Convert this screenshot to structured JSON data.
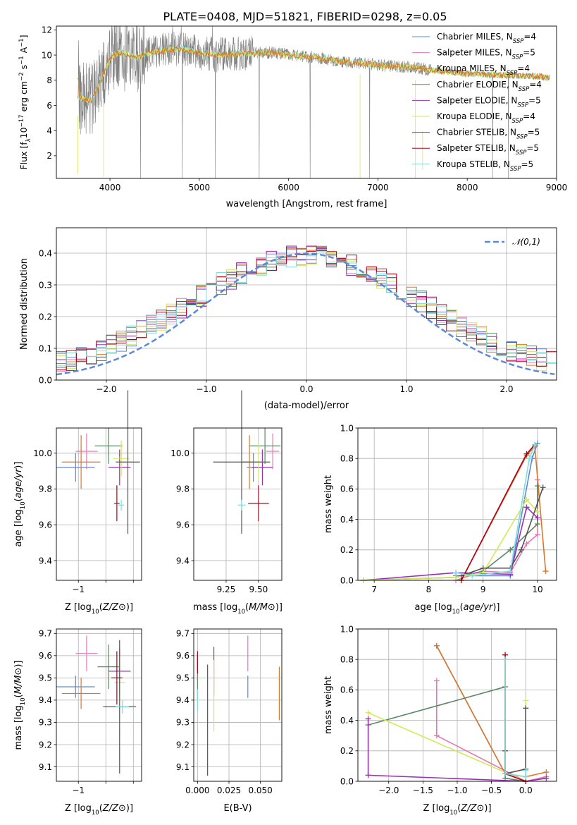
{
  "page": {
    "title": "PLATE=0408, MJD=51821, FIBERID=0298, z=0.05"
  },
  "series_styles": [
    {
      "key": "chabrier_miles",
      "color": "#5b8ad8"
    },
    {
      "key": "salpeter_miles",
      "color": "#e477b4"
    },
    {
      "key": "kroupa_miles",
      "color": "#d9772b"
    },
    {
      "key": "chabrier_elodie",
      "color": "#5d8766"
    },
    {
      "key": "salpeter_elodie",
      "color": "#9b2fb8"
    },
    {
      "key": "kroupa_elodie",
      "color": "#d4e85a"
    },
    {
      "key": "chabrier_stelib",
      "color": "#555555"
    },
    {
      "key": "salpeter_stelib",
      "color": "#b00018"
    },
    {
      "key": "kroupa_stelib",
      "color": "#7fdede"
    }
  ],
  "chart_data": [
    {
      "id": "spectrum",
      "type": "line",
      "xlabel": "wavelength [Angstrom, rest frame]",
      "ylabel_parts": [
        "Flux [f",
        "λ",
        "10",
        "−17",
        " erg cm",
        "−2",
        " s",
        "−1",
        " A",
        "−1",
        "]"
      ],
      "xlim": [
        3400,
        9000
      ],
      "ylim": [
        0.2,
        12.3
      ],
      "xticks": [
        4000,
        5000,
        6000,
        7000,
        8000,
        9000
      ],
      "yticks": [
        2,
        4,
        6,
        8,
        10,
        12
      ],
      "legend_position": "upper right",
      "legend": [
        {
          "base": "Chabrier MILES, N",
          "sub": "SSP",
          "tail": "=4"
        },
        {
          "base": "Salpeter MILES, N",
          "sub": "SSP",
          "tail": "=5"
        },
        {
          "base": "Kroupa MILES, N",
          "sub": "SSP",
          "tail": "=4"
        },
        {
          "base": "Chabrier ELODIE, N",
          "sub": "SSP",
          "tail": "=4"
        },
        {
          "base": "Salpeter ELODIE, N",
          "sub": "SSP",
          "tail": "=5"
        },
        {
          "base": "Kroupa ELODIE, N",
          "sub": "SSP",
          "tail": "=4"
        },
        {
          "base": "Chabrier STELIB, N",
          "sub": "SSP",
          "tail": "=5"
        },
        {
          "base": "Salpeter STELIB, N",
          "sub": "SSP",
          "tail": "=5"
        },
        {
          "base": "Kroupa STELIB, N",
          "sub": "SSP",
          "tail": "=5"
        }
      ],
      "data_color": "#808080",
      "model_colors": [
        "#7fdede",
        "#d4e85a",
        "#d9772b"
      ],
      "continuum": [
        [
          3650,
          6.6
        ],
        [
          3800,
          6.4
        ],
        [
          3900,
          8.0
        ],
        [
          4000,
          9.8
        ],
        [
          4100,
          10.2
        ],
        [
          4300,
          9.8
        ],
        [
          4500,
          10.3
        ],
        [
          4800,
          10.5
        ],
        [
          5000,
          10.2
        ],
        [
          5200,
          10.0
        ],
        [
          5400,
          10.1
        ],
        [
          5800,
          10.2
        ],
        [
          6200,
          9.9
        ],
        [
          6600,
          9.5
        ],
        [
          7000,
          9.2
        ],
        [
          7400,
          9.0
        ],
        [
          7600,
          8.8
        ],
        [
          8000,
          8.5
        ],
        [
          8400,
          8.4
        ],
        [
          8800,
          8.3
        ],
        [
          8900,
          8.2
        ]
      ]
    },
    {
      "id": "residual_hist",
      "type": "histogram",
      "xlabel": "(data-model)/error",
      "ylabel": "Normed distribution",
      "xlim": [
        -2.5,
        2.5
      ],
      "ylim": [
        0,
        0.48
      ],
      "xticks": [
        -2,
        -1,
        0,
        1,
        2
      ],
      "yticks": [
        0,
        0.1,
        0.2,
        0.3,
        0.4
      ],
      "bin_width": 0.1,
      "legend": [
        {
          "label": "𝒩(0,1)",
          "color": "#5b8ad8",
          "dash": true
        }
      ]
    },
    {
      "id": "age_vs_Z",
      "type": "scatter",
      "xlabel": "Z [log10(Z/Z⊙)]",
      "ylabel": "age  [log10(age/yr)]",
      "xlim": [
        -1.4,
        0.15
      ],
      "ylim": [
        9.29,
        10.14
      ],
      "xticks": [
        -1,
        -0.5,
        0
      ],
      "xtick_labels": [
        "−1",
        "",
        ""
      ],
      "yticks": [
        9.4,
        9.6,
        9.8,
        10.0
      ],
      "points": [
        {
          "x": -1.05,
          "y": 9.92,
          "xerr": 0.35,
          "yerr": 0.08,
          "c": "chabrier_miles"
        },
        {
          "x": -0.85,
          "y": 10.01,
          "xerr": 0.2,
          "yerr": 0.1,
          "c": "salpeter_miles"
        },
        {
          "x": -0.95,
          "y": 9.95,
          "xerr": 0.35,
          "yerr": 0.15,
          "c": "kroupa_miles"
        },
        {
          "x": -0.45,
          "y": 10.04,
          "xerr": 0.25,
          "yerr": 0.1,
          "c": "chabrier_elodie"
        },
        {
          "x": -0.25,
          "y": 9.92,
          "xerr": 0.2,
          "yerr": 0.1,
          "c": "salpeter_elodie"
        },
        {
          "x": -0.22,
          "y": 9.97,
          "xerr": 0.15,
          "yerr": 0.1,
          "c": "kroupa_elodie"
        },
        {
          "x": -0.1,
          "y": 9.95,
          "xerr": 0.22,
          "yerr": 0.4,
          "c": "chabrier_stelib"
        },
        {
          "x": -0.3,
          "y": 9.72,
          "xerr": 0.05,
          "yerr": 0.1,
          "c": "salpeter_stelib"
        },
        {
          "x": -0.22,
          "y": 9.71,
          "xerr": 0.05,
          "yerr": 0.03,
          "c": "kroupa_stelib"
        }
      ]
    },
    {
      "id": "age_vs_mass",
      "type": "scatter",
      "xlabel": "mass [log10(M/M⊙)]",
      "ylabel": "",
      "xlim": [
        9.0,
        9.68
      ],
      "ylim": [
        9.29,
        10.14
      ],
      "xticks": [
        9.25,
        9.5
      ],
      "xtick_labels": [
        "9.25",
        "9.50"
      ],
      "yticks": [
        9.4,
        9.6,
        9.8,
        10.0
      ],
      "points": [
        {
          "x": 9.46,
          "y": 9.92,
          "xerr": 0.05,
          "yerr": 0.08,
          "c": "chabrier_miles"
        },
        {
          "x": 9.61,
          "y": 10.01,
          "xerr": 0.05,
          "yerr": 0.1,
          "c": "salpeter_miles"
        },
        {
          "x": 9.43,
          "y": 9.95,
          "xerr": 0.05,
          "yerr": 0.15,
          "c": "kroupa_miles"
        },
        {
          "x": 9.55,
          "y": 10.04,
          "xerr": 0.12,
          "yerr": 0.1,
          "c": "chabrier_elodie"
        },
        {
          "x": 9.53,
          "y": 9.92,
          "xerr": 0.08,
          "yerr": 0.1,
          "c": "salpeter_elodie"
        },
        {
          "x": 9.5,
          "y": 9.95,
          "xerr": 0.05,
          "yerr": 0.1,
          "c": "kroupa_elodie"
        },
        {
          "x": 9.37,
          "y": 9.95,
          "xerr": 0.22,
          "yerr": 0.4,
          "c": "chabrier_stelib"
        },
        {
          "x": 9.5,
          "y": 9.72,
          "xerr": 0.08,
          "yerr": 0.1,
          "c": "salpeter_stelib"
        },
        {
          "x": 9.37,
          "y": 9.71,
          "xerr": 0.03,
          "yerr": 0.03,
          "c": "kroupa_stelib"
        }
      ]
    },
    {
      "id": "mass_weight_vs_age",
      "type": "line",
      "xlabel": "age  [log10(age/yr)]",
      "ylabel": "mass weight",
      "xlim": [
        6.7,
        10.35
      ],
      "ylim": [
        0,
        1.0
      ],
      "xticks": [
        7,
        8,
        9,
        10
      ],
      "yticks": [
        0,
        0.2,
        0.4,
        0.6,
        0.8,
        1.0
      ],
      "series": [
        {
          "c": "chabrier_miles",
          "x": [
            8.5,
            9.5,
            9.9,
            10.0
          ],
          "y": [
            0.03,
            0.03,
            0.8,
            0.9
          ]
        },
        {
          "c": "salpeter_miles",
          "x": [
            8.5,
            9.0,
            9.5,
            9.8,
            10.0,
            10.0
          ],
          "y": [
            0.0,
            0.06,
            0.05,
            0.24,
            0.3,
            0.66
          ]
        },
        {
          "c": "kroupa_miles",
          "x": [
            8.6,
            9.8,
            9.95,
            10.15
          ],
          "y": [
            0.0,
            0.82,
            0.88,
            0.06
          ]
        },
        {
          "c": "chabrier_elodie",
          "x": [
            6.8,
            8.5,
            9.0,
            9.5,
            10.0,
            10.0
          ],
          "y": [
            0.0,
            0.02,
            0.06,
            0.2,
            0.37,
            0.62
          ]
        },
        {
          "c": "salpeter_elodie",
          "x": [
            6.8,
            8.5,
            9.5,
            9.8,
            10.0
          ],
          "y": [
            0.0,
            0.05,
            0.04,
            0.48,
            0.41
          ]
        },
        {
          "c": "kroupa_elodie",
          "x": [
            6.8,
            8.5,
            9.0,
            9.8,
            10.0
          ],
          "y": [
            0.0,
            0.02,
            0.05,
            0.53,
            0.45
          ]
        },
        {
          "c": "chabrier_stelib",
          "x": [
            8.6,
            9.0,
            9.5,
            9.7,
            10.1
          ],
          "y": [
            0.03,
            0.08,
            0.08,
            0.2,
            0.61
          ]
        },
        {
          "c": "salpeter_stelib",
          "x": [
            8.6,
            9.8,
            9.95
          ],
          "y": [
            0.0,
            0.83,
            0.89
          ]
        },
        {
          "c": "kroupa_stelib",
          "x": [
            8.5,
            8.8,
            9.5,
            9.85,
            9.95
          ],
          "y": [
            0.05,
            0.03,
            0.06,
            0.8,
            0.89
          ]
        }
      ]
    },
    {
      "id": "mass_vs_Z",
      "type": "scatter",
      "xlabel": "Z [log10(Z/Z⊙)]",
      "ylabel": "mass [log10(M/M⊙)]",
      "xlim": [
        -1.4,
        0.15
      ],
      "ylim": [
        9.035,
        9.72
      ],
      "xticks": [
        -1,
        -0.5,
        0
      ],
      "xtick_labels": [
        "−1",
        "",
        ""
      ],
      "yticks": [
        9.1,
        9.2,
        9.3,
        9.4,
        9.5,
        9.6,
        9.7
      ],
      "points": [
        {
          "x": -1.05,
          "y": 9.46,
          "xerr": 0.35,
          "yerr": 0.05,
          "c": "chabrier_miles"
        },
        {
          "x": -0.85,
          "y": 9.61,
          "xerr": 0.2,
          "yerr": 0.08,
          "c": "salpeter_miles"
        },
        {
          "x": -0.95,
          "y": 9.43,
          "xerr": 0.35,
          "yerr": 0.07,
          "c": "kroupa_miles"
        },
        {
          "x": -0.45,
          "y": 9.55,
          "xerr": 0.2,
          "yerr": 0.1,
          "c": "chabrier_elodie"
        },
        {
          "x": -0.25,
          "y": 9.53,
          "xerr": 0.2,
          "yerr": 0.1,
          "c": "salpeter_elodie"
        },
        {
          "x": -0.25,
          "y": 9.48,
          "xerr": 0.1,
          "yerr": 0.12,
          "c": "kroupa_elodie"
        },
        {
          "x": -0.25,
          "y": 9.37,
          "xerr": 0.3,
          "yerr": 0.3,
          "c": "chabrier_stelib"
        },
        {
          "x": -0.3,
          "y": 9.5,
          "xerr": 0.1,
          "yerr": 0.12,
          "c": "salpeter_stelib"
        },
        {
          "x": -0.2,
          "y": 9.37,
          "xerr": 0.12,
          "yerr": 0.03,
          "c": "kroupa_stelib"
        }
      ]
    },
    {
      "id": "mass_vs_ebv",
      "type": "scatter",
      "xlabel": "E(B-V)",
      "ylabel": "",
      "xlim": [
        -0.003,
        0.067
      ],
      "ylim": [
        9.035,
        9.72
      ],
      "xticks": [
        0.0,
        0.025,
        0.05
      ],
      "xtick_labels": [
        "0.000",
        "0.025",
        "0.050"
      ],
      "yticks": [
        9.1,
        9.2,
        9.3,
        9.4,
        9.5,
        9.6,
        9.7
      ],
      "points": [
        {
          "x": 0.04,
          "y": 9.46,
          "xerr": 0,
          "yerr": 0.05,
          "c": "chabrier_miles"
        },
        {
          "x": 0.04,
          "y": 9.61,
          "xerr": 0,
          "yerr": 0.08,
          "c": "salpeter_miles"
        },
        {
          "x": 0.065,
          "y": 9.43,
          "xerr": 0,
          "yerr": 0.12,
          "c": "kroupa_miles"
        },
        {
          "x": 0.0,
          "y": 9.5,
          "xerr": 0,
          "yerr": 0.1,
          "c": "chabrier_elodie"
        },
        {
          "x": 0.013,
          "y": 9.53,
          "xerr": 0,
          "yerr": 0.11,
          "c": "salpeter_elodie"
        },
        {
          "x": 0.013,
          "y": 9.42,
          "xerr": 0,
          "yerr": 0.16,
          "c": "kroupa_elodie"
        },
        {
          "x": 0.008,
          "y": 9.31,
          "xerr": 0,
          "yerr": 0.25,
          "c": "chabrier_stelib"
        },
        {
          "x": 0.0,
          "y": 9.57,
          "xerr": 0,
          "yerr": 0.05,
          "c": "salpeter_stelib"
        },
        {
          "x": 0.0,
          "y": 9.4,
          "xerr": 0,
          "yerr": 0.05,
          "c": "kroupa_stelib"
        }
      ]
    },
    {
      "id": "mass_weight_vs_Z",
      "type": "line",
      "xlabel": "Z [log10(Z/Z⊙)]",
      "ylabel": "mass weight",
      "xlim": [
        -2.45,
        0.45
      ],
      "ylim": [
        0,
        1.0
      ],
      "xticks": [
        -2.0,
        -1.5,
        -1.0,
        -0.5,
        0.0
      ],
      "xtick_labels": [
        "−2.0",
        "−1.5",
        "−1.0",
        "−0.5",
        "0.0"
      ],
      "yticks": [
        0,
        0.2,
        0.4,
        0.6,
        0.8,
        1.0
      ],
      "series": [
        {
          "c": "chabrier_miles",
          "x": [
            -1.3,
            -0.3,
            0.0
          ],
          "y": [
            0.89,
            0.05,
            0.0
          ]
        },
        {
          "c": "salpeter_miles",
          "x": [
            -1.3,
            -1.3,
            0.0,
            0.3
          ],
          "y": [
            0.66,
            0.3,
            0.0,
            0.03
          ]
        },
        {
          "c": "kroupa_miles",
          "x": [
            -1.3,
            -0.3,
            0.0,
            0.3
          ],
          "y": [
            0.89,
            0.05,
            0.03,
            0.06
          ]
        },
        {
          "c": "chabrier_elodie",
          "x": [
            -2.3,
            -0.3,
            -0.3,
            0.0
          ],
          "y": [
            0.37,
            0.62,
            0.02,
            0.0
          ]
        },
        {
          "c": "salpeter_elodie",
          "x": [
            -2.3,
            -2.3,
            0.0,
            0.3
          ],
          "y": [
            0.41,
            0.04,
            0.0,
            0.02
          ]
        },
        {
          "c": "kroupa_elodie",
          "x": [
            -2.3,
            0.0,
            0.0
          ],
          "y": [
            0.45,
            0.0,
            0.53
          ]
        },
        {
          "c": "chabrier_stelib",
          "x": [
            -0.3,
            -0.3,
            0.0,
            0.0
          ],
          "y": [
            0.2,
            0.05,
            0.08,
            0.48
          ]
        },
        {
          "c": "salpeter_stelib",
          "x": [
            -0.3,
            -0.3,
            0.0
          ],
          "y": [
            0.83,
            0.05,
            0.0
          ]
        },
        {
          "c": "kroupa_stelib",
          "x": [
            -0.3,
            -0.3,
            0.0,
            0.0
          ],
          "y": [
            0.8,
            0.05,
            0.03,
            0.07
          ]
        }
      ]
    }
  ]
}
